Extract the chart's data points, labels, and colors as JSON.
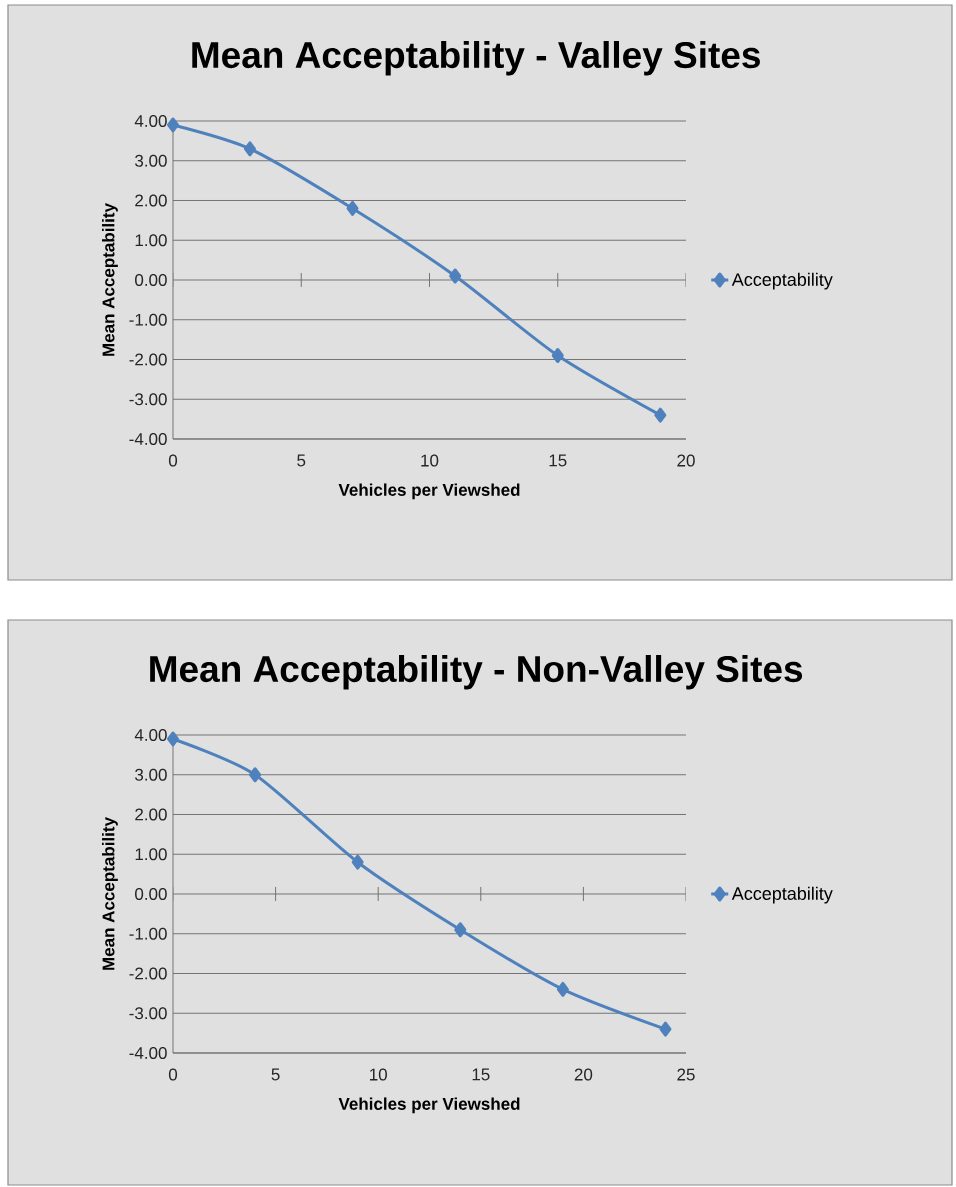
{
  "chart_data": [
    {
      "type": "line",
      "title": "Mean Acceptability - Valley Sites",
      "xlabel": "Vehicles per Viewshed",
      "ylabel": "Mean Acceptability",
      "series": [
        {
          "name": "Acceptability",
          "color": "#4f81bd",
          "x": [
            0,
            3,
            7,
            11,
            15,
            19
          ],
          "values": [
            3.9,
            3.3,
            1.8,
            0.1,
            -1.9,
            -3.4
          ]
        }
      ],
      "xlim": [
        0,
        20
      ],
      "xticks": [
        0,
        5,
        10,
        15,
        20
      ],
      "ylim": [
        -4,
        4
      ],
      "yticks": [
        {
          "value": 4,
          "label": "4.00"
        },
        {
          "value": 3,
          "label": "3.00"
        },
        {
          "value": 2,
          "label": "2.00"
        },
        {
          "value": 1,
          "label": "1.00"
        },
        {
          "value": 0,
          "label": "0.00"
        },
        {
          "value": -1,
          "label": "-1.00"
        },
        {
          "value": -2,
          "label": "-2.00"
        },
        {
          "value": -3,
          "label": "-3.00"
        },
        {
          "value": -4,
          "label": "-4.00"
        }
      ],
      "grid": "y",
      "legend": "right",
      "marker": "diamond",
      "line_style": "solid"
    },
    {
      "type": "line",
      "title": "Mean Acceptability - Non-Valley Sites",
      "xlabel": "Vehicles per Viewshed",
      "ylabel": "Mean Acceptability",
      "series": [
        {
          "name": "Acceptability",
          "color": "#4f81bd",
          "x": [
            0,
            4,
            9,
            14,
            19,
            24
          ],
          "values": [
            3.9,
            3.0,
            0.8,
            -0.9,
            -2.4,
            -3.4
          ]
        }
      ],
      "xlim": [
        0,
        25
      ],
      "xticks": [
        0,
        5,
        10,
        15,
        20,
        25
      ],
      "ylim": [
        -4,
        4
      ],
      "yticks": [
        {
          "value": 4,
          "label": "4.00"
        },
        {
          "value": 3,
          "label": "3.00"
        },
        {
          "value": 2,
          "label": "2.00"
        },
        {
          "value": 1,
          "label": "1.00"
        },
        {
          "value": 0,
          "label": "0.00"
        },
        {
          "value": -1,
          "label": "-1.00"
        },
        {
          "value": -2,
          "label": "-2.00"
        },
        {
          "value": -3,
          "label": "-3.00"
        },
        {
          "value": -4,
          "label": "-4.00"
        }
      ],
      "grid": "y",
      "legend": "right",
      "marker": "diamond",
      "line_style": "solid"
    }
  ]
}
